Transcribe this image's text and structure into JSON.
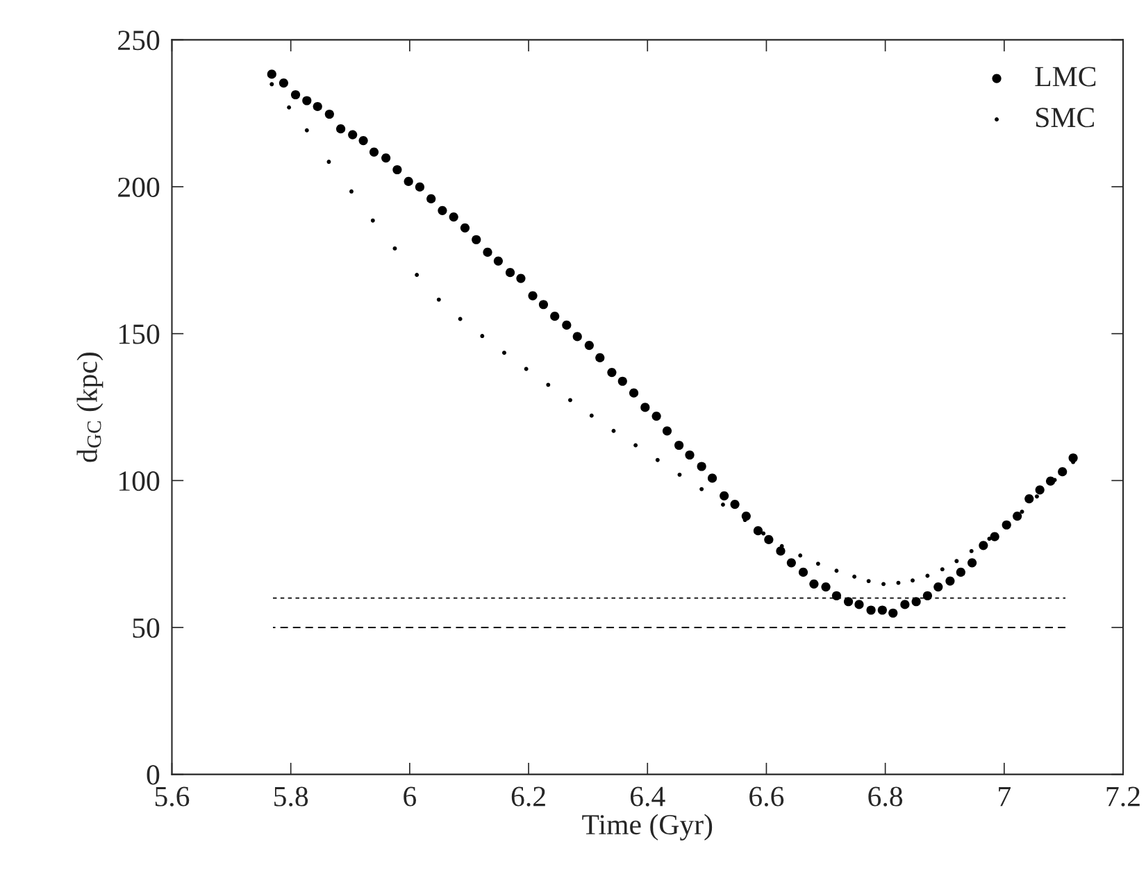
{
  "chart_data": {
    "type": "scatter",
    "xlabel": "Time (Gyr)",
    "ylabel": "d$_{GC}$ (kpc)",
    "xlim": [
      5.6,
      7.2
    ],
    "xticks": [
      5.6,
      5.8,
      6,
      6.2,
      6.4,
      6.6,
      6.8,
      7,
      7.2
    ],
    "ylim": [
      0,
      250
    ],
    "yticks": [
      0,
      50,
      100,
      150,
      200,
      250
    ],
    "grid": false,
    "legend": "top right",
    "series": [
      {
        "name": "LMC",
        "color": "#000000",
        "marker": "circle",
        "x": [
          5.768,
          5.788,
          5.808,
          5.827,
          5.845,
          5.865,
          5.884,
          5.904,
          5.922,
          5.94,
          5.96,
          5.979,
          5.998,
          6.017,
          6.036,
          6.055,
          6.074,
          6.093,
          6.112,
          6.131,
          6.149,
          6.169,
          6.187,
          6.207,
          6.225,
          6.244,
          6.264,
          6.282,
          6.302,
          6.32,
          6.34,
          6.358,
          6.377,
          6.396,
          6.415,
          6.433,
          6.453,
          6.471,
          6.491,
          6.509,
          6.529,
          6.547,
          6.566,
          6.586,
          6.604,
          6.624,
          6.642,
          6.662,
          6.68,
          6.7,
          6.718,
          6.738,
          6.756,
          6.776,
          6.795,
          6.813,
          6.833,
          6.852,
          6.871,
          6.889,
          6.909,
          6.927,
          6.946,
          6.965,
          6.984,
          7.004,
          7.022,
          7.042,
          7.06,
          7.078,
          7.098,
          7.116
        ],
        "values": [
          238.3,
          235.3,
          231.3,
          229.3,
          227.3,
          224.7,
          219.7,
          217.7,
          215.7,
          211.8,
          209.8,
          205.8,
          201.8,
          199.9,
          195.9,
          191.9,
          189.7,
          186.0,
          182.0,
          177.7,
          174.7,
          170.8,
          168.8,
          162.9,
          159.9,
          155.9,
          152.9,
          149.0,
          146.0,
          141.8,
          136.8,
          133.8,
          129.8,
          124.9,
          121.9,
          116.9,
          112.0,
          108.7,
          104.8,
          100.8,
          94.8,
          91.9,
          87.9,
          82.9,
          79.9,
          76.0,
          72.0,
          68.8,
          64.8,
          63.8,
          60.8,
          58.8,
          57.8,
          55.9,
          55.9,
          54.9,
          57.8,
          58.8,
          60.8,
          63.8,
          65.8,
          68.8,
          72.0,
          77.9,
          80.9,
          84.9,
          87.9,
          93.8,
          96.8,
          99.8,
          103.0,
          107.7
        ]
      },
      {
        "name": "SMC",
        "color": "#000000",
        "marker": "circle",
        "x": [
          5.768,
          5.797,
          5.827,
          5.864,
          5.902,
          5.938,
          5.975,
          6.012,
          6.049,
          6.085,
          6.122,
          6.159,
          6.196,
          6.233,
          6.27,
          6.306,
          6.343,
          6.38,
          6.417,
          6.454,
          6.491,
          6.527,
          6.564,
          6.595,
          6.626,
          6.657,
          6.687,
          6.718,
          6.748,
          6.772,
          6.797,
          6.822,
          6.846,
          6.871,
          6.896,
          6.92,
          6.945,
          6.975,
          7.006,
          7.03,
          7.055,
          7.085,
          7.116
        ],
        "values": [
          234.9,
          227.0,
          219.2,
          208.5,
          198.4,
          188.5,
          179.0,
          170.0,
          161.6,
          155.0,
          149.2,
          143.5,
          138.0,
          132.6,
          127.4,
          122.1,
          116.9,
          112.0,
          107.0,
          102.0,
          97.1,
          91.8,
          86.6,
          82.0,
          77.7,
          74.5,
          71.7,
          69.3,
          67.3,
          65.8,
          64.8,
          65.2,
          66.0,
          67.6,
          69.8,
          72.6,
          76.0,
          80.2,
          null,
          89.4,
          94.6,
          100.2,
          106.3
        ]
      },
      {
        "type": "line",
        "color": "#000000",
        "line_style": "dotted",
        "x": [
          5.77,
          7.103
        ],
        "values": [
          60,
          60
        ]
      },
      {
        "type": "line",
        "color": "#000000",
        "line_style": "dashed",
        "x": [
          7.103,
          5.77
        ],
        "values": [
          50,
          50
        ]
      }
    ]
  }
}
